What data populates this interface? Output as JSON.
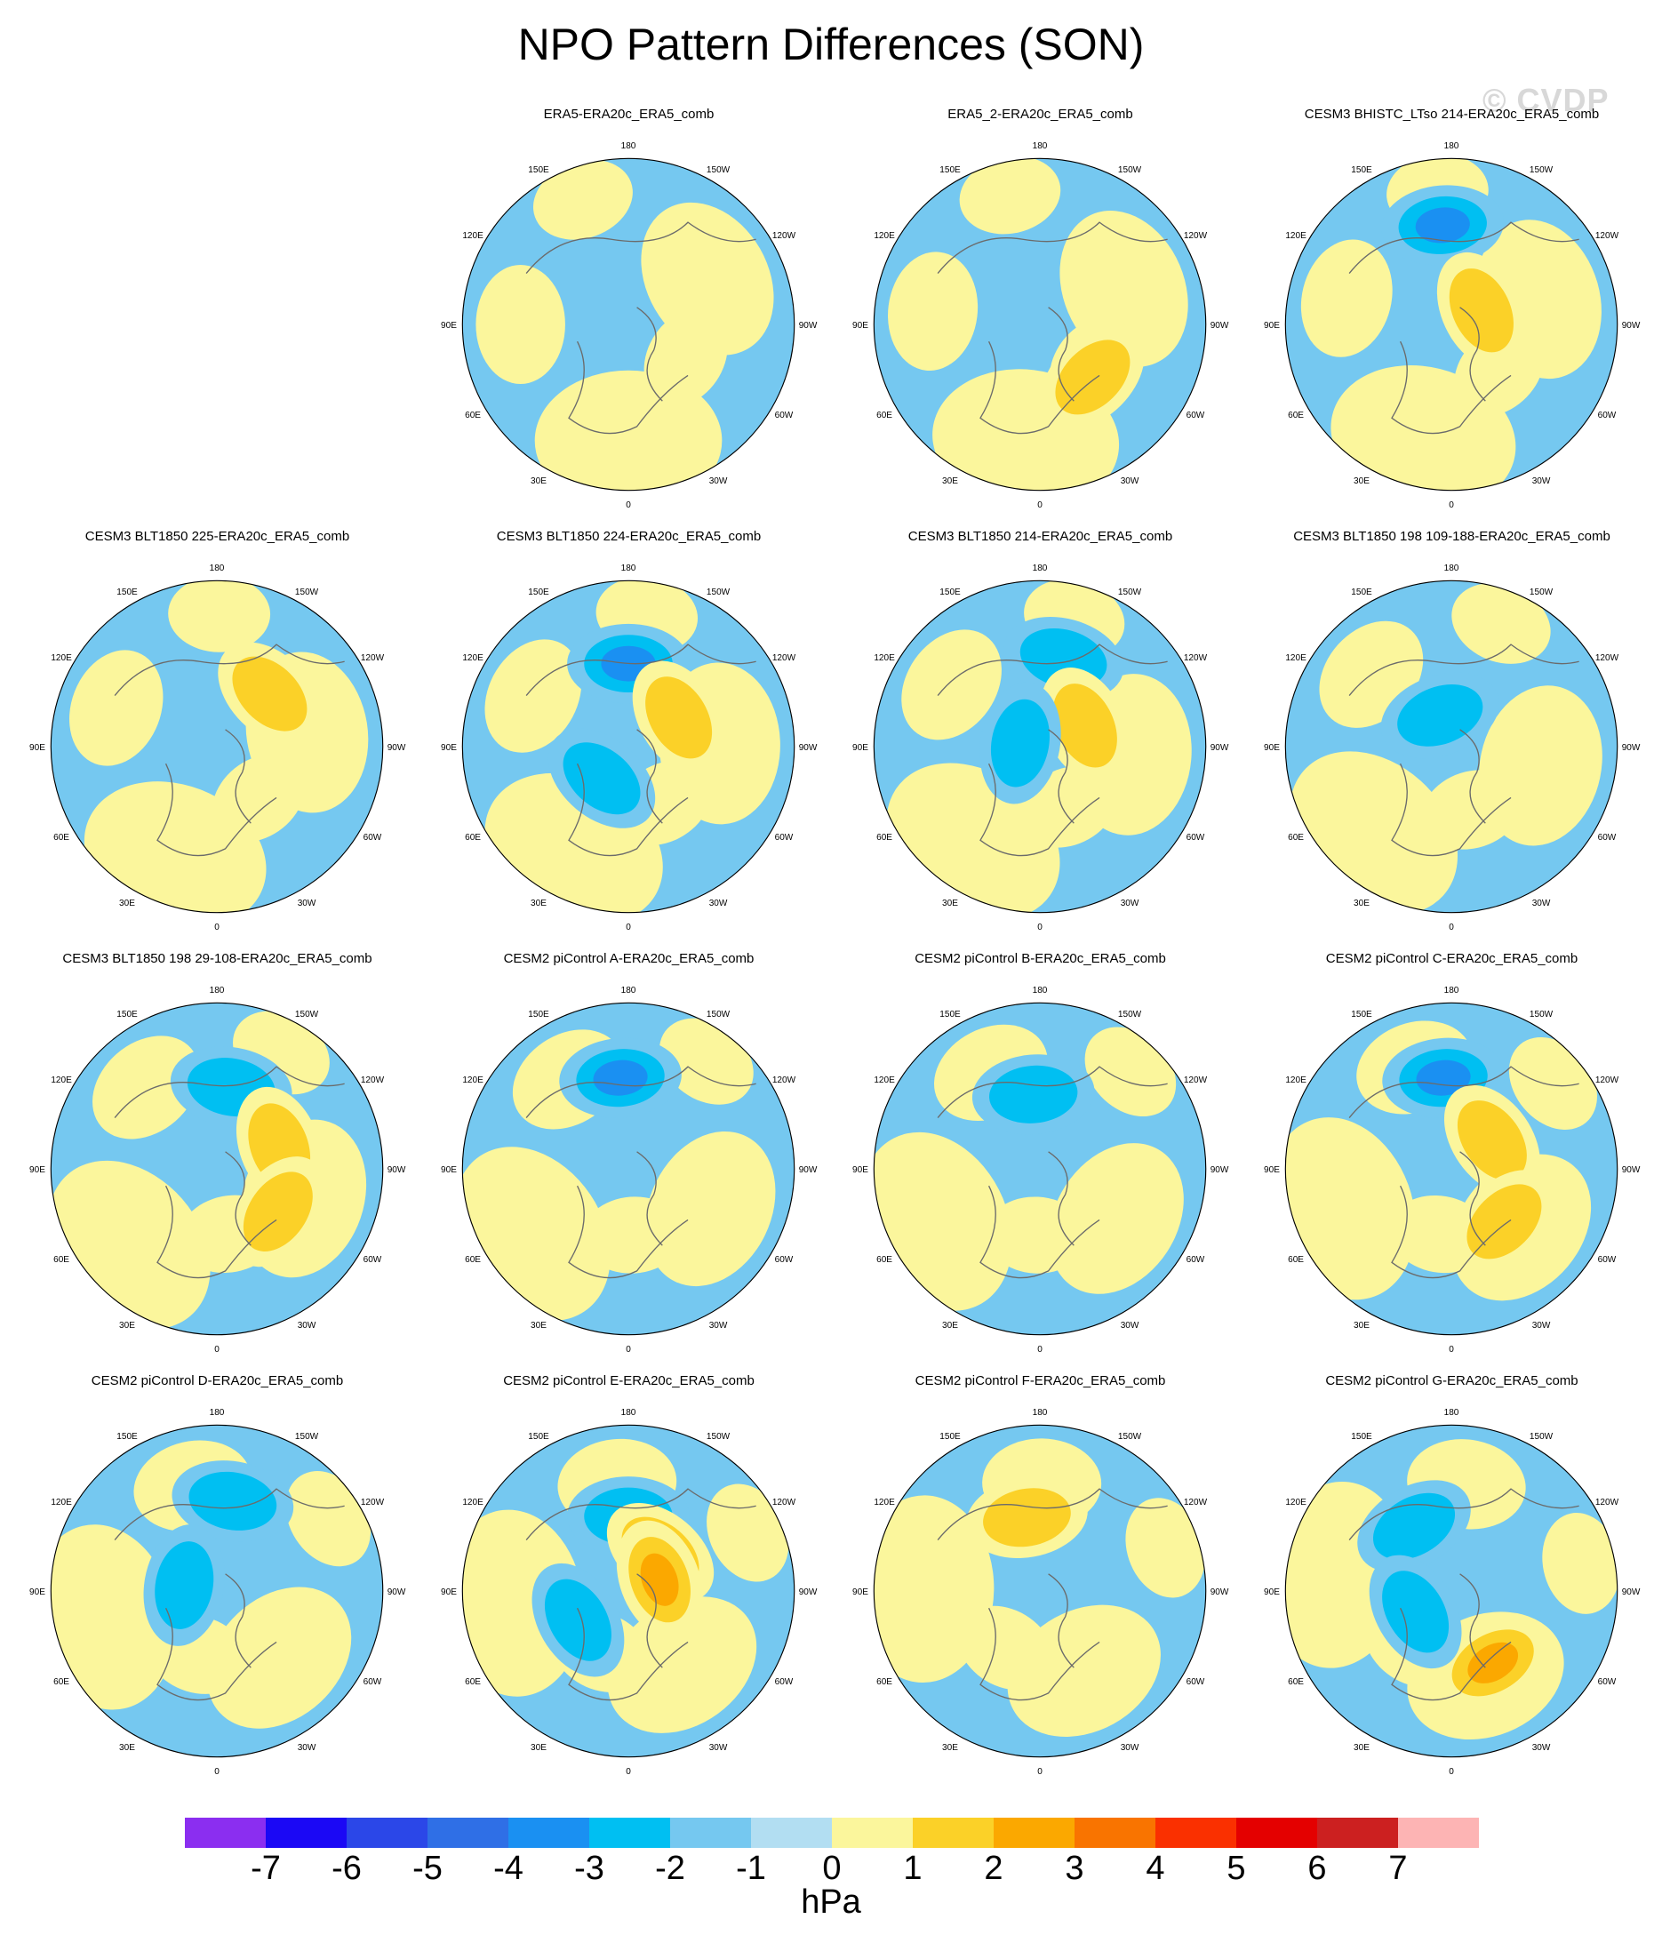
{
  "title": "NPO Pattern Differences (SON)",
  "watermark": "© CVDP",
  "units": "hPa",
  "colorbar": {
    "colors": [
      "#8b2ef0",
      "#1b08f5",
      "#2b47e8",
      "#2f6fe6",
      "#1a90f2",
      "#00bff2",
      "#75c8f0",
      "#b2def2",
      "#fbf69c",
      "#fbd128",
      "#fba800",
      "#f97400",
      "#fa3000",
      "#e40000",
      "#cc2020",
      "#fdb4b4"
    ],
    "labels": [
      "-7",
      "-6",
      "-5",
      "-4",
      "-3",
      "-2",
      "-1",
      "0",
      "1",
      "2",
      "3",
      "4",
      "5",
      "6",
      "7"
    ]
  },
  "lon_labels": [
    "180",
    "150E",
    "120E",
    "90E",
    "60E",
    "30E",
    "0",
    "30W",
    "60W",
    "90W",
    "120W",
    "150W"
  ],
  "panels": [
    {
      "title": "ERA5-ERA20c_ERA5_comb",
      "row": 0,
      "col": 1,
      "anomalies": []
    },
    {
      "title": "ERA5_2-ERA20c_ERA5_comb",
      "row": 0,
      "col": 2,
      "anomalies": [
        {
          "lon": -45,
          "r": 0.45,
          "v": 2
        }
      ]
    },
    {
      "title": "CESM3 BHISTC_LTso 214-ERA20c_ERA5_comb",
      "row": 0,
      "col": 3,
      "anomalies": [
        {
          "lon": 175,
          "r": 0.6,
          "v": -3
        },
        {
          "lon": -115,
          "r": 0.2,
          "v": 2
        }
      ]
    },
    {
      "title": "CESM3 BLT1850 225-ERA20c_ERA5_comb",
      "row": 1,
      "col": 0,
      "anomalies": [
        {
          "lon": -135,
          "r": 0.45,
          "v": 2
        }
      ]
    },
    {
      "title": "CESM3 BLT1850 224-ERA20c_ERA5_comb",
      "row": 1,
      "col": 1,
      "anomalies": [
        {
          "lon": 180,
          "r": 0.5,
          "v": -3
        },
        {
          "lon": -120,
          "r": 0.35,
          "v": 2
        },
        {
          "lon": 40,
          "r": 0.25,
          "v": -2
        }
      ]
    },
    {
      "title": "CESM3 BLT1850 214-ERA20c_ERA5_comb",
      "row": 1,
      "col": 2,
      "anomalies": [
        {
          "lon": -165,
          "r": 0.55,
          "v": -2
        },
        {
          "lon": -115,
          "r": 0.3,
          "v": 2
        },
        {
          "lon": 100,
          "r": 0.12,
          "v": -2
        }
      ]
    },
    {
      "title": "CESM3 BLT1850 198 109-188-ERA20c_ERA5_comb",
      "row": 1,
      "col": 3,
      "anomalies": [
        {
          "lon": 160,
          "r": 0.2,
          "v": -2
        }
      ]
    },
    {
      "title": "CESM3 BLT1850 198 29-108-ERA20c_ERA5_comb",
      "row": 2,
      "col": 0,
      "anomalies": [
        {
          "lon": -170,
          "r": 0.5,
          "v": -2
        },
        {
          "lon": -110,
          "r": 0.4,
          "v": 2
        },
        {
          "lon": -55,
          "r": 0.45,
          "v": 2
        }
      ]
    },
    {
      "title": "CESM2 piControl A-ERA20c_ERA5_comb",
      "row": 2,
      "col": 1,
      "anomalies": [
        {
          "lon": 175,
          "r": 0.55,
          "v": -3
        }
      ]
    },
    {
      "title": "CESM2 piControl B-ERA20c_ERA5_comb",
      "row": 2,
      "col": 2,
      "anomalies": [
        {
          "lon": 175,
          "r": 0.45,
          "v": -2
        }
      ]
    },
    {
      "title": "CESM2 piControl C-ERA20c_ERA5_comb",
      "row": 2,
      "col": 3,
      "anomalies": [
        {
          "lon": 175,
          "r": 0.55,
          "v": -3
        },
        {
          "lon": -125,
          "r": 0.3,
          "v": 2
        },
        {
          "lon": -45,
          "r": 0.45,
          "v": 2
        }
      ]
    },
    {
      "title": "CESM2 piControl D-ERA20c_ERA5_comb",
      "row": 3,
      "col": 0,
      "anomalies": [
        {
          "lon": -170,
          "r": 0.55,
          "v": -2
        },
        {
          "lon": 100,
          "r": 0.2,
          "v": -2
        }
      ]
    },
    {
      "title": "CESM2 piControl E-ERA20c_ERA5_comb",
      "row": 3,
      "col": 1,
      "anomalies": [
        {
          "lon": 180,
          "r": 0.45,
          "v": -2
        },
        {
          "lon": -140,
          "r": 0.3,
          "v": 4
        },
        {
          "lon": -110,
          "r": 0.2,
          "v": 3
        },
        {
          "lon": 60,
          "r": 0.35,
          "v": -2
        }
      ]
    },
    {
      "title": "CESM2 piControl F-ERA20c_ERA5_comb",
      "row": 3,
      "col": 2,
      "anomalies": [
        {
          "lon": 170,
          "r": 0.45,
          "v": 2
        }
      ]
    },
    {
      "title": "CESM2 piControl G-ERA20c_ERA5_comb",
      "row": 3,
      "col": 3,
      "anomalies": [
        {
          "lon": 150,
          "r": 0.45,
          "v": -2
        },
        {
          "lon": -30,
          "r": 0.5,
          "v": 3
        },
        {
          "lon": 60,
          "r": 0.25,
          "v": -2
        }
      ]
    }
  ]
}
